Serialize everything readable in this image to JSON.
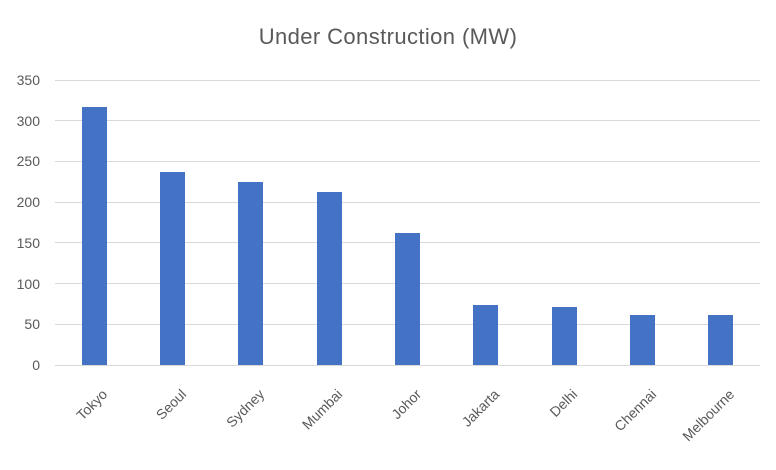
{
  "chart_data": {
    "type": "bar",
    "title": "Under Construction (MW)",
    "categories": [
      "Tokyo",
      "Seoul",
      "Sydney",
      "Mumbai",
      "Johor",
      "Jakarta",
      "Delhi",
      "Chennai",
      "Melbourne"
    ],
    "values": [
      317,
      237,
      225,
      213,
      162,
      74,
      71,
      62,
      61
    ],
    "xlabel": "",
    "ylabel": "",
    "ylim": [
      0,
      350
    ],
    "ytick_step": 50,
    "yticks": [
      0,
      50,
      100,
      150,
      200,
      250,
      300,
      350
    ],
    "grid": "horizontal",
    "legend": "none",
    "category_label_rotation_deg": 45,
    "colors": {
      "bar": "#4472C4",
      "gridline": "#D9D9D9",
      "axis_line": "#D9D9D9",
      "text": "#595959"
    }
  }
}
